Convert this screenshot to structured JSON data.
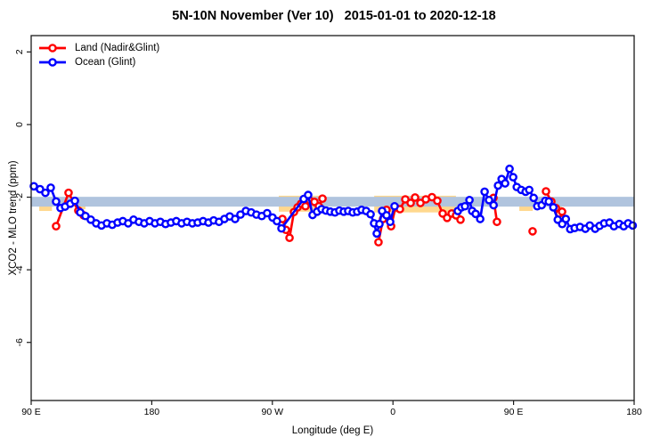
{
  "chart_data": {
    "type": "line",
    "title": "5N-10N November (Ver 10)   2015-01-01 to 2020-12-18",
    "xlabel": "Longitude (deg E)",
    "ylabel": "XCO2 - MLO trend (ppm)",
    "x_domain": [
      90,
      540
    ],
    "y_domain": [
      -7.6,
      2.45
    ],
    "x_ticks": {
      "values": [
        90,
        180,
        270,
        360,
        450,
        540
      ],
      "labels": [
        "90 E",
        "180",
        "90 W",
        "0",
        "90 E",
        "180"
      ]
    },
    "y_ticks": {
      "values": [
        2,
        0,
        -2,
        -4,
        -6
      ],
      "labels": [
        "2",
        "0",
        "-2",
        "-4",
        "-6"
      ]
    },
    "grid": "off",
    "legend_position": "top-left",
    "reference_band": {
      "y0": -1.99,
      "y1": -2.26,
      "color": "#b0c4de"
    },
    "wheat_regions": {
      "color": "#ffd88e",
      "segments": [
        {
          "x0": 96.0,
          "x1": 105.5,
          "y0": -2.05,
          "y1": -2.38
        },
        {
          "x0": 125.0,
          "x1": 130.5,
          "y0": -2.06,
          "y1": -2.33
        },
        {
          "x0": 274.8,
          "x1": 306.0,
          "y0": -1.96,
          "y1": -2.4
        },
        {
          "x0": 346.0,
          "x1": 407.0,
          "y0": -1.96,
          "y1": -2.42
        },
        {
          "x0": 454.3,
          "x1": 464.3,
          "y0": -2.18,
          "y1": -2.38
        },
        {
          "x0": 470.2,
          "x1": 473.6,
          "y0": -1.98,
          "y1": -2.28
        },
        {
          "x0": 482.9,
          "x1": 486.2,
          "y0": -2.02,
          "y1": -2.32
        }
      ]
    },
    "series": [
      {
        "name": "Land (Nadir&Glint)",
        "color": "#ff0000",
        "marker": "open-circle",
        "segments": [
          [
            [
              108.6,
              -2.8
            ],
            [
              117.9,
              -1.88
            ],
            [
              125.2,
              -2.37
            ],
            [
              129.2,
              -2.5
            ]
          ],
          [
            [
              277.5,
              -2.6
            ],
            [
              280.1,
              -2.9
            ],
            [
              282.8,
              -3.12
            ],
            [
              286.1,
              -2.41
            ],
            [
              288.8,
              -2.28
            ],
            [
              291.4,
              -2.18
            ],
            [
              294.7,
              -2.25
            ],
            [
              298.1,
              -2.1
            ],
            [
              301.4,
              -2.13
            ],
            [
              304.7,
              -2.25
            ],
            [
              307.4,
              -2.04
            ]
          ],
          [
            [
              349.2,
              -3.24
            ],
            [
              352.6,
              -2.6
            ],
            [
              355.2,
              -2.35
            ],
            [
              358.6,
              -2.8
            ],
            [
              361.9,
              -2.28
            ],
            [
              365.2,
              -2.33
            ],
            [
              369.2,
              -2.06
            ],
            [
              373.2,
              -2.16
            ],
            [
              376.5,
              -2.01
            ],
            [
              380.5,
              -2.16
            ],
            [
              384.5,
              -2.06
            ],
            [
              389.1,
              -2.0
            ],
            [
              393.1,
              -2.1
            ],
            [
              397.1,
              -2.45
            ],
            [
              400.4,
              -2.57
            ],
            [
              403.8,
              -2.45
            ],
            [
              407.1,
              -2.5
            ],
            [
              410.4,
              -2.62
            ]
          ],
          [
            [
              435.0,
              -2.02
            ],
            [
              437.6,
              -2.68
            ]
          ],
          [
            [
              464.2,
              -2.94
            ]
          ],
          [
            [
              474.2,
              -1.84
            ],
            [
              478.2,
              -2.12
            ],
            [
              481.6,
              -2.3
            ],
            [
              484.2,
              -2.45
            ],
            [
              486.2,
              -2.4
            ]
          ]
        ]
      },
      {
        "name": "Ocean (Glint)",
        "color": "#0000ff",
        "marker": "open-circle",
        "segments": [
          [
            [
              92.0,
              -1.7
            ],
            [
              96.6,
              -1.78
            ],
            [
              100.6,
              -1.88
            ],
            [
              104.6,
              -1.74
            ],
            [
              108.6,
              -2.12
            ],
            [
              111.9,
              -2.3
            ],
            [
              115.3,
              -2.26
            ],
            [
              119.2,
              -2.18
            ],
            [
              122.6,
              -2.1
            ],
            [
              126.6,
              -2.42
            ],
            [
              130.5,
              -2.52
            ],
            [
              134.5,
              -2.62
            ],
            [
              138.5,
              -2.72
            ],
            [
              142.5,
              -2.78
            ],
            [
              146.5,
              -2.72
            ],
            [
              150.5,
              -2.76
            ],
            [
              154.5,
              -2.7
            ],
            [
              158.4,
              -2.66
            ],
            [
              162.4,
              -2.72
            ],
            [
              166.4,
              -2.62
            ],
            [
              170.4,
              -2.68
            ],
            [
              174.4,
              -2.72
            ],
            [
              178.4,
              -2.66
            ],
            [
              182.4,
              -2.72
            ],
            [
              186.4,
              -2.68
            ],
            [
              190.3,
              -2.74
            ],
            [
              194.3,
              -2.7
            ],
            [
              198.3,
              -2.66
            ],
            [
              202.3,
              -2.72
            ],
            [
              206.3,
              -2.68
            ],
            [
              210.3,
              -2.72
            ],
            [
              214.3,
              -2.7
            ],
            [
              218.3,
              -2.66
            ],
            [
              222.3,
              -2.7
            ],
            [
              226.2,
              -2.64
            ],
            [
              230.2,
              -2.68
            ],
            [
              234.2,
              -2.6
            ],
            [
              238.2,
              -2.53
            ],
            [
              242.2,
              -2.6
            ],
            [
              246.2,
              -2.48
            ],
            [
              250.2,
              -2.38
            ],
            [
              254.2,
              -2.42
            ],
            [
              258.1,
              -2.48
            ],
            [
              262.1,
              -2.52
            ],
            [
              266.1,
              -2.44
            ],
            [
              270.1,
              -2.56
            ],
            [
              273.4,
              -2.66
            ],
            [
              276.8,
              -2.86
            ],
            [
              293.4,
              -2.05
            ],
            [
              296.7,
              -1.94
            ],
            [
              300.0,
              -2.49
            ],
            [
              303.4,
              -2.4
            ],
            [
              306.7,
              -2.33
            ],
            [
              310.0,
              -2.37
            ],
            [
              313.3,
              -2.4
            ],
            [
              316.7,
              -2.42
            ],
            [
              320.0,
              -2.37
            ],
            [
              323.3,
              -2.4
            ],
            [
              326.6,
              -2.38
            ],
            [
              330.0,
              -2.42
            ],
            [
              333.3,
              -2.4
            ],
            [
              336.6,
              -2.35
            ],
            [
              340.0,
              -2.38
            ],
            [
              343.3,
              -2.47
            ],
            [
              345.9,
              -2.72
            ],
            [
              347.9,
              -3.0
            ],
            [
              349.9,
              -2.74
            ],
            [
              351.9,
              -2.38
            ],
            [
              355.2,
              -2.5
            ],
            [
              357.9,
              -2.68
            ],
            [
              361.2,
              -2.25
            ]
          ],
          [
            [
              408.4,
              -2.38
            ],
            [
              411.1,
              -2.28
            ],
            [
              413.7,
              -2.25
            ],
            [
              417.1,
              -2.08
            ],
            [
              419.1,
              -2.38
            ],
            [
              421.7,
              -2.46
            ],
            [
              425.1,
              -2.6
            ],
            [
              428.4,
              -1.85
            ],
            [
              431.7,
              -2.08
            ],
            [
              435.1,
              -2.22
            ],
            [
              438.4,
              -1.68
            ],
            [
              441.1,
              -1.5
            ],
            [
              443.7,
              -1.62
            ],
            [
              447.0,
              -1.22
            ],
            [
              449.7,
              -1.45
            ],
            [
              452.4,
              -1.72
            ],
            [
              455.7,
              -1.8
            ],
            [
              459.0,
              -1.85
            ],
            [
              461.7,
              -1.8
            ],
            [
              465.0,
              -2.02
            ],
            [
              467.7,
              -2.25
            ],
            [
              471.0,
              -2.22
            ],
            [
              473.7,
              -2.1
            ],
            [
              476.3,
              -2.12
            ],
            [
              479.7,
              -2.28
            ],
            [
              483.0,
              -2.62
            ],
            [
              486.3,
              -2.74
            ],
            [
              489.0,
              -2.6
            ],
            [
              492.3,
              -2.88
            ],
            [
              495.6,
              -2.85
            ],
            [
              499.6,
              -2.82
            ],
            [
              503.6,
              -2.87
            ],
            [
              506.9,
              -2.78
            ],
            [
              510.9,
              -2.87
            ],
            [
              514.2,
              -2.79
            ],
            [
              517.6,
              -2.72
            ],
            [
              521.6,
              -2.7
            ],
            [
              524.9,
              -2.8
            ],
            [
              528.9,
              -2.74
            ],
            [
              532.2,
              -2.8
            ],
            [
              535.5,
              -2.72
            ],
            [
              538.9,
              -2.78
            ]
          ]
        ]
      }
    ]
  }
}
